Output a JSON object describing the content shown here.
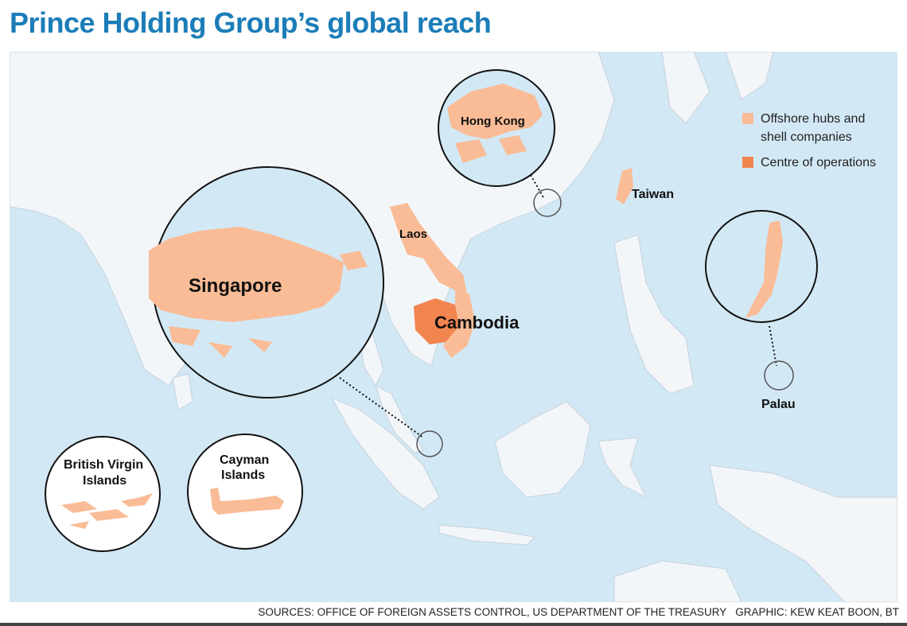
{
  "title": "Prince Holding Group’s global reach",
  "legend": [
    {
      "label_line1": "Offshore hubs and",
      "label_line2": "shell companies",
      "color": "#f9bc96"
    },
    {
      "label_line1": "Centre of operations",
      "color": "#f28450"
    }
  ],
  "places": {
    "hong_kong": "Hong Kong",
    "taiwan": "Taiwan",
    "laos": "Laos",
    "singapore": "Singapore",
    "cambodia": "Cambodia",
    "palau": "Palau",
    "bvi_line1": "British Virgin",
    "bvi_line2": "Islands",
    "cayman_line1": "Cayman",
    "cayman_line2": "Islands"
  },
  "colors": {
    "ocean": "#d3e8f5",
    "land": "#f3f6f9",
    "border": "#c9d6e0",
    "title": "#1b7db8"
  },
  "source": "SOURCES: OFFICE OF FOREIGN ASSETS CONTROL, US DEPARTMENT OF THE TREASURY   GRAPHIC: KEW KEAT BOON, BT"
}
